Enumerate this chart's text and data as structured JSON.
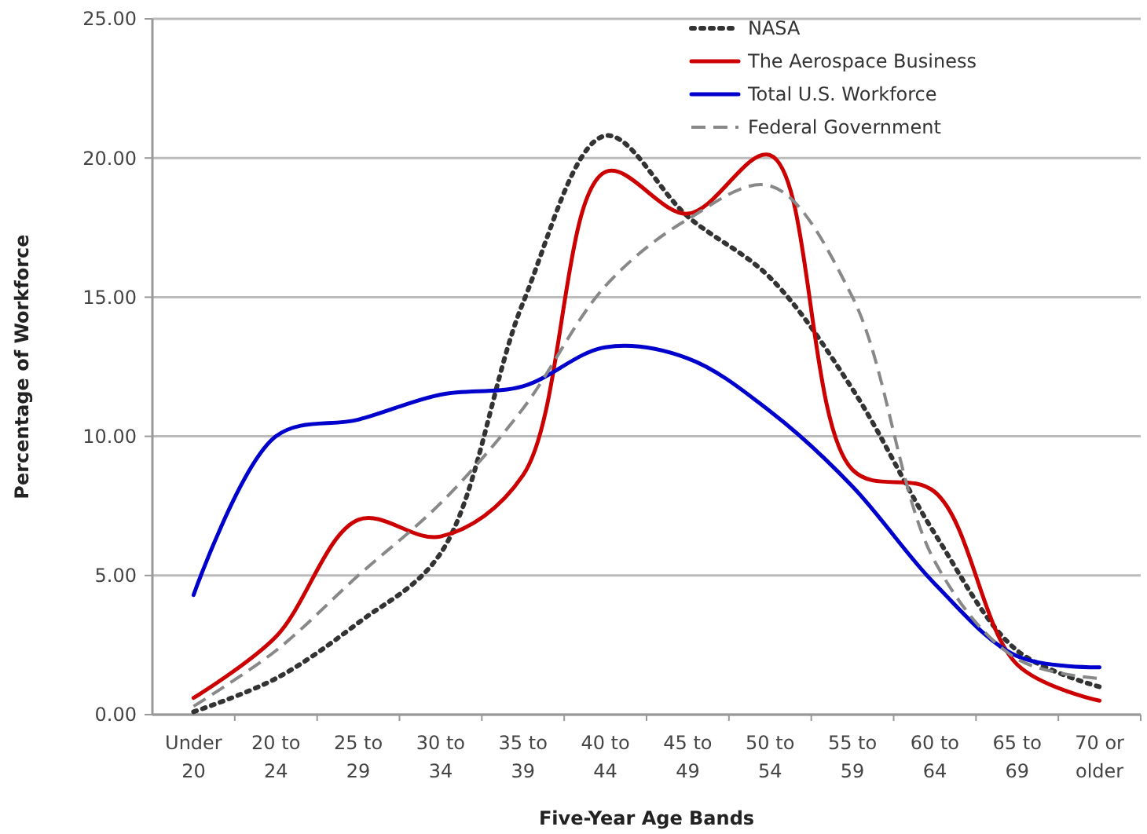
{
  "chart_data": {
    "type": "line",
    "xlabel": "Five-Year Age Bands",
    "ylabel": "Percentage of Workforce",
    "categories": [
      "Under 20",
      "20 to 24",
      "25 to 29",
      "30 to 34",
      "35 to 39",
      "40 to 44",
      "45 to 49",
      "50 to 54",
      "55 to 59",
      "60 to 64",
      "65 to 69",
      "70 or older"
    ],
    "series": [
      {
        "name": "NASA",
        "color": "#333333",
        "line_style": "dotted",
        "values": [
          0.1,
          1.3,
          3.3,
          5.8,
          14.8,
          20.8,
          17.9,
          15.7,
          11.7,
          6.5,
          2.3,
          1.0
        ]
      },
      {
        "name": "The Aerospace Business",
        "color": "#cc0000",
        "line_style": "solid",
        "values": [
          0.6,
          2.8,
          7.0,
          6.4,
          8.6,
          19.5,
          18.0,
          20.1,
          8.8,
          8.0,
          1.8,
          0.5
        ]
      },
      {
        "name": "Total U.S. Workforce",
        "color": "#0000cc",
        "line_style": "solid",
        "values": [
          4.3,
          10.0,
          10.6,
          11.5,
          11.8,
          13.2,
          12.8,
          10.9,
          8.2,
          4.7,
          2.1,
          1.7
        ]
      },
      {
        "name": "Federal Government",
        "color": "#888888",
        "line_style": "dashed",
        "values": [
          0.3,
          2.3,
          5.0,
          7.6,
          11.0,
          15.4,
          17.8,
          19.0,
          15.0,
          5.5,
          2.0,
          1.3
        ]
      }
    ],
    "ylim": [
      0,
      25
    ],
    "yticks": [
      {
        "value": 0,
        "label": "0.00"
      },
      {
        "value": 5,
        "label": "5.00"
      },
      {
        "value": 10,
        "label": "10.00"
      },
      {
        "value": 15,
        "label": "15.00"
      },
      {
        "value": 20,
        "label": "20.00"
      },
      {
        "value": 25,
        "label": "25.00"
      }
    ],
    "grid": "y",
    "legend": "top right",
    "marker": "none"
  }
}
